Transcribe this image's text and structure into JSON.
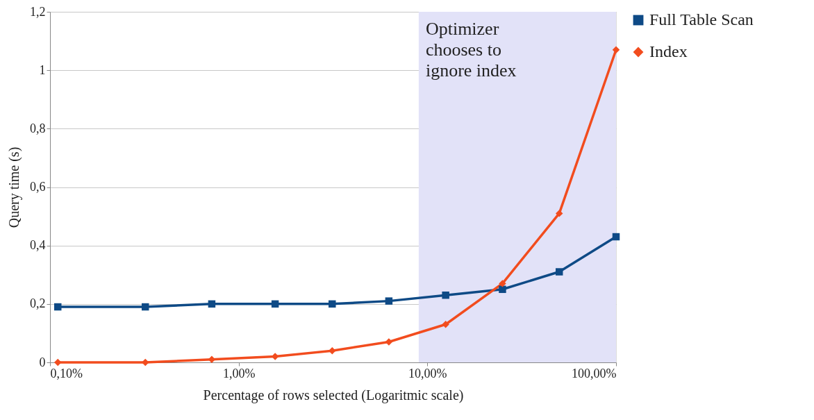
{
  "chart_data": {
    "type": "line",
    "xlabel": "Percentage of rows selected (Logaritmic scale)",
    "ylabel": "Query time (s)",
    "x": [
      0.11,
      0.32,
      0.72,
      1.56,
      3.13,
      6.25,
      12.5,
      25,
      50,
      100
    ],
    "log": "x",
    "xlim": [
      0.1,
      100
    ],
    "xticks": [
      {
        "value": 0.1,
        "label": "0,10%"
      },
      {
        "value": 1,
        "label": "1,00%"
      },
      {
        "value": 10,
        "label": "10,00%"
      },
      {
        "value": 100,
        "label": "100,00%"
      }
    ],
    "ylim": [
      0,
      1.2
    ],
    "yticks": [
      0,
      {
        "value": 0.2,
        "label": "0,2"
      },
      {
        "value": 0.4,
        "label": "0,4"
      },
      {
        "value": 0.6,
        "label": "0,6"
      },
      {
        "value": 0.8,
        "label": "0,8"
      },
      1,
      {
        "value": 1.2,
        "label": "1,2"
      }
    ],
    "series": [
      {
        "name": "Full Table Scan",
        "color": "#0e4a86",
        "marker": "square",
        "values": [
          0.19,
          0.19,
          0.2,
          0.2,
          0.2,
          0.21,
          0.23,
          0.25,
          0.31,
          0.43
        ]
      },
      {
        "name": "Index",
        "color": "#f24c1e",
        "marker": "diamond",
        "values": [
          0,
          0,
          0.01,
          0.02,
          0.04,
          0.07,
          0.13,
          0.27,
          0.51,
          1.07
        ]
      }
    ],
    "bands": [
      {
        "axis": "x",
        "from": 9,
        "to": 100,
        "label": "Optimizer chooses to ignore index",
        "color": "#e2e2f8"
      }
    ],
    "grid": "y",
    "legend": "right",
    "line_style": "solid"
  }
}
